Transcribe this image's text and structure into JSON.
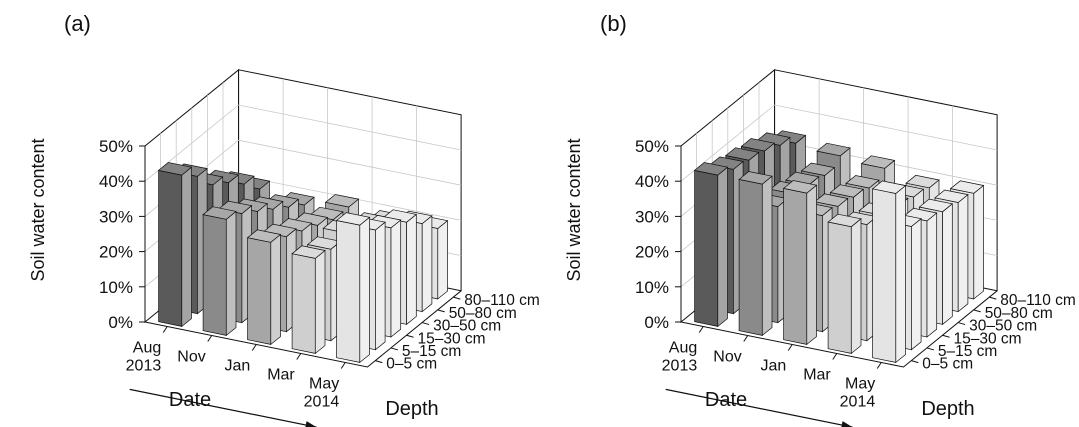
{
  "chart_data": [
    {
      "type": "bar3d",
      "panel_label": "(a)",
      "zlabel": "Soil water content",
      "zticks": [
        "0%",
        "10%",
        "20%",
        "30%",
        "40%",
        "50%"
      ],
      "zlim": [
        0,
        50
      ],
      "date_label": "Date",
      "depth_label": "Depth",
      "dates": [
        "Aug 2013",
        "Nov",
        "Jan",
        "Mar",
        "May 2014"
      ],
      "depths": [
        "0–5 cm",
        "5–15 cm",
        "15–30 cm",
        "30–50 cm",
        "50–80 cm",
        "80–110 cm"
      ],
      "values": [
        [
          43,
          39,
          33,
          30,
          26,
          21
        ],
        [
          33,
          31,
          28,
          25,
          22,
          19
        ],
        [
          29,
          27,
          25,
          23,
          21,
          21
        ],
        [
          27,
          26,
          27,
          24,
          22,
          19
        ],
        [
          39,
          34,
          31,
          29,
          25,
          20
        ]
      ]
    },
    {
      "type": "bar3d",
      "panel_label": "(b)",
      "zlabel": "Soil water content",
      "zticks": [
        "0%",
        "10%",
        "20%",
        "30%",
        "40%",
        "50%"
      ],
      "zlim": [
        0,
        50
      ],
      "date_label": "Date",
      "depth_label": "Depth",
      "dates": [
        "Aug 2013",
        "Nov",
        "Jan",
        "Mar",
        "May 2014"
      ],
      "depths": [
        "0–5 cm",
        "5–15 cm",
        "15–30 cm",
        "30–50 cm",
        "50–80 cm",
        "80–110 cm"
      ],
      "values": [
        [
          43,
          41,
          40,
          39,
          37,
          34
        ],
        [
          43,
          33,
          33,
          32,
          31,
          33
        ],
        [
          43,
          33,
          32,
          31,
          30,
          32
        ],
        [
          36,
          33,
          32,
          31,
          30,
          29
        ],
        [
          48,
          35,
          33,
          32,
          31,
          30
        ]
      ]
    }
  ],
  "colors": {
    "date_shades": [
      "#5a5a5a",
      "#8a8a8a",
      "#a6a6a6",
      "#cfcfcf",
      "#e4e4e4"
    ],
    "frame": "#111111",
    "grid": "#c8c8c8"
  }
}
